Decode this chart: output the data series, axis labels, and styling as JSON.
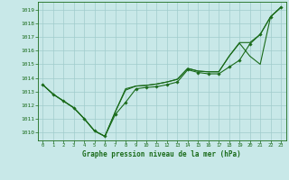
{
  "title": "Graphe pression niveau de la mer (hPa)",
  "bg_color": "#c8e8e8",
  "grid_color": "#a0cccc",
  "line_color": "#1a6b1a",
  "xlim": [
    -0.5,
    23.5
  ],
  "ylim": [
    1009.4,
    1019.6
  ],
  "yticks": [
    1010,
    1011,
    1012,
    1013,
    1014,
    1015,
    1016,
    1017,
    1018,
    1019
  ],
  "xticks": [
    0,
    1,
    2,
    3,
    4,
    5,
    6,
    7,
    8,
    9,
    10,
    11,
    12,
    13,
    14,
    15,
    16,
    17,
    18,
    19,
    20,
    21,
    22,
    23
  ],
  "series_marker": [
    1013.5,
    1012.8,
    1012.3,
    1011.8,
    1011.0,
    1010.1,
    1009.7,
    1011.3,
    1012.2,
    1013.2,
    1013.3,
    1013.35,
    1013.5,
    1013.7,
    1014.6,
    1014.4,
    1014.3,
    1014.3,
    1014.8,
    1015.3,
    1016.5,
    1017.2,
    1018.5,
    1019.2
  ],
  "series_line2": [
    1013.5,
    1012.8,
    1012.3,
    1011.8,
    1011.0,
    1010.1,
    1009.7,
    1011.5,
    1013.1,
    1013.4,
    1013.45,
    1013.55,
    1013.7,
    1013.9,
    1014.7,
    1014.5,
    1014.45,
    1014.45,
    1015.6,
    1016.55,
    1015.6,
    1015.0,
    1018.5,
    1019.2
  ],
  "series_line3": [
    1013.5,
    1012.8,
    1012.3,
    1011.8,
    1011.0,
    1010.1,
    1009.7,
    1011.5,
    1013.2,
    1013.4,
    1013.45,
    1013.55,
    1013.7,
    1013.9,
    1014.7,
    1014.5,
    1014.45,
    1014.45,
    1015.6,
    1016.6,
    1016.6,
    1017.2,
    1018.5,
    1019.2
  ]
}
